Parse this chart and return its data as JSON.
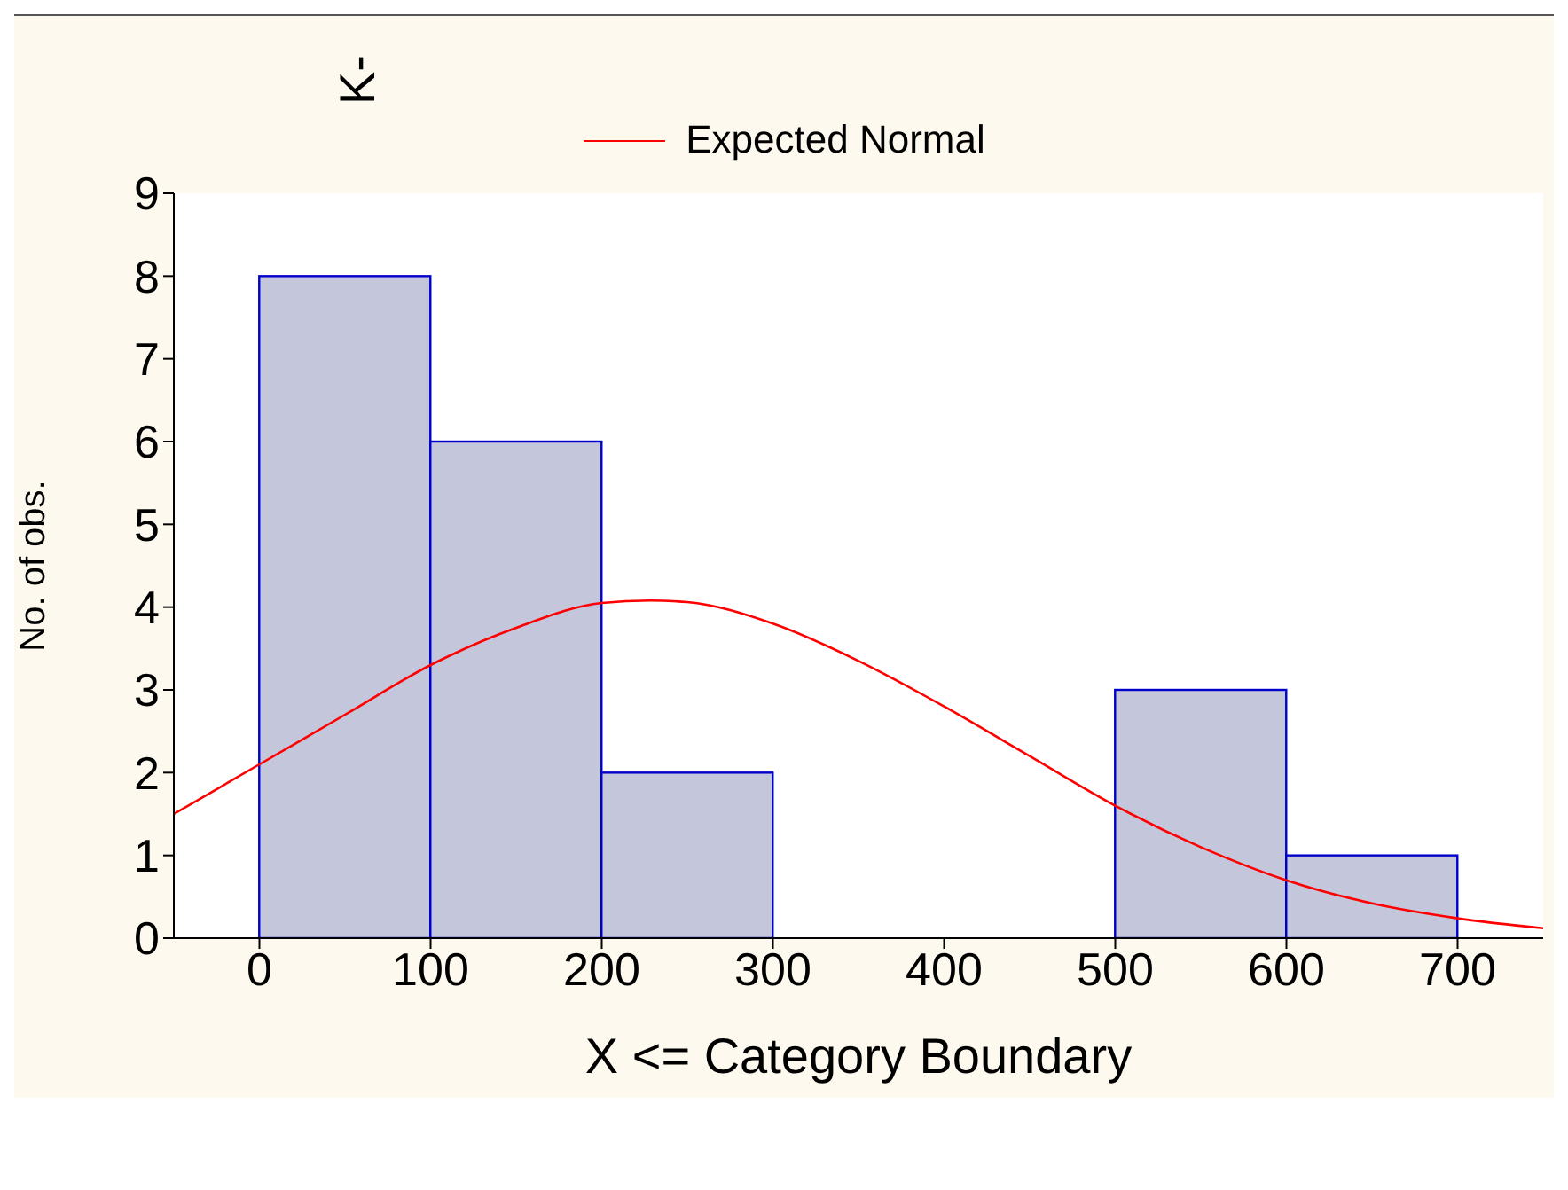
{
  "chart_data": {
    "type": "histogram",
    "annotations": [
      "K-"
    ],
    "xlabel": "X <= Category Boundary",
    "ylabel": "No. of obs.",
    "bins": [
      0,
      100,
      200,
      300,
      400,
      500,
      600,
      700
    ],
    "values": [
      8,
      6,
      2,
      0,
      0,
      3,
      1
    ],
    "color": "#c4c6dc",
    "series": [
      {
        "type": "line",
        "name": "Expected Normal",
        "color": "#ff0000",
        "x": [
          -50,
          0,
          50,
          100,
          150,
          200,
          228,
          250,
          300,
          350,
          400,
          450,
          500,
          550,
          600,
          650,
          700,
          750
        ],
        "values": [
          1.5,
          2.1,
          2.7,
          3.3,
          3.75,
          4.05,
          4.08,
          4.06,
          3.8,
          3.35,
          2.8,
          2.2,
          1.6,
          1.1,
          0.7,
          0.42,
          0.24,
          0.12
        ]
      }
    ],
    "xlim": [
      -50,
      750
    ],
    "xticks": [
      0,
      100,
      200,
      300,
      400,
      500,
      600,
      700
    ],
    "ylim": [
      0,
      9
    ],
    "yticks": [
      0,
      1,
      2,
      3,
      4,
      5,
      6,
      7,
      8,
      9
    ],
    "grid": false,
    "legend": "top"
  }
}
